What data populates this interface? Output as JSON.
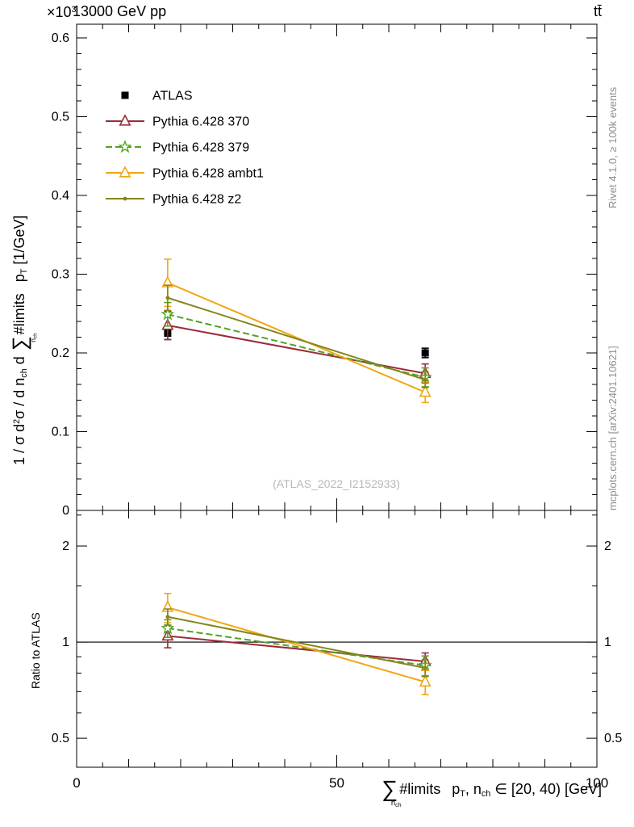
{
  "header": {
    "scale_base": "×10",
    "scale_exp": "3",
    "title_left": "13000 GeV pp",
    "title_right": "tt̄"
  },
  "side_notes": {
    "top": "Rivet 4.1.0, ≥ 100k events",
    "bottom": "mcplots.cern.ch [arXiv:2401.10621]"
  },
  "watermark": "(ATLAS_2022_I2152933)",
  "axes": {
    "ratio_label": "Ratio to ATLAS",
    "y_title": {
      "p1": "1 / σ d",
      "p1_sup": "2",
      "p2": "σ / d n",
      "p2_sub": "ch",
      "p3": " d ",
      "sum": "∑",
      "sum_sub": "n",
      "sum_sub2": "ch",
      "p4": "#limits",
      "p5": "p",
      "p5_sub": "T",
      "p6": " [1/GeV]"
    },
    "x_title": {
      "sum": "∑",
      "sum_sub": "n",
      "sum_sub2": "ch",
      "limits": "#limits",
      "p": "p",
      "p_sub": "T",
      "rest1": ", n",
      "rest1_sub": "ch",
      "rest2": " ∈ [20, 40) [GeV]"
    }
  },
  "chart_data": {
    "type": "line",
    "title": "13000 GeV pp",
    "right_label": "tt̄",
    "x": [
      17.5,
      67
    ],
    "x_axis": {
      "range": [
        0,
        100
      ],
      "major_ticks": [
        0,
        50,
        100
      ],
      "labels": [
        "0",
        "50",
        "100"
      ],
      "minor_step": 5
    },
    "main_y_axis": {
      "range": [
        0,
        0.6174
      ],
      "major_ticks": [
        0,
        0.1,
        0.2,
        0.3,
        0.4,
        0.5,
        0.6
      ],
      "labels": [
        "0",
        "0.1",
        "0.2",
        "0.3",
        "0.4",
        "0.5",
        "0.6"
      ],
      "minor_step": 0.02
    },
    "ratio_y_axis": {
      "scale": "log",
      "range": [
        0.4057,
        2.585
      ],
      "major_ticks": [
        0.5,
        1,
        2
      ],
      "labels": [
        "0.5",
        "1",
        "2"
      ],
      "minor_ticks": [
        0.6,
        0.7,
        0.8,
        0.9,
        1.5,
        2.5
      ],
      "reference_line": 1
    },
    "series": [
      {
        "name": "ATLAS",
        "color": "#000000",
        "line": "none",
        "marker": "square-filled",
        "values": [
          0.225,
          0.2
        ],
        "errors": [
          0.008,
          0.006
        ],
        "ratio": null,
        "ratio_errors": null
      },
      {
        "name": "Pythia 6.428 370",
        "color": "#9c2b3a",
        "line": "solid",
        "marker": "triangle-open",
        "values": [
          0.235,
          0.174
        ],
        "errors": [
          0.018,
          0.012
        ],
        "ratio": [
          1.045,
          0.87
        ],
        "ratio_errors": [
          0.085,
          0.055
        ]
      },
      {
        "name": "Pythia 6.428 379",
        "color": "#53a222",
        "line": "dashed",
        "marker": "star-open",
        "values": [
          0.249,
          0.169
        ],
        "errors": [
          0.015,
          0.012
        ],
        "ratio": [
          1.105,
          0.845
        ],
        "ratio_errors": [
          0.07,
          0.06
        ]
      },
      {
        "name": "Pythia 6.428 ambt1",
        "color": "#f0a513",
        "line": "solid",
        "marker": "triangle-open",
        "values": [
          0.289,
          0.15
        ],
        "errors": [
          0.03,
          0.013
        ],
        "ratio": [
          1.285,
          0.75
        ],
        "ratio_errors": [
          0.135,
          0.065
        ]
      },
      {
        "name": "Pythia 6.428 z2",
        "color": "#84861b",
        "line": "solid",
        "marker": "dot",
        "values": [
          0.27,
          0.166
        ],
        "errors": [
          0.016,
          0.01
        ],
        "ratio": [
          1.2,
          0.83
        ],
        "ratio_errors": [
          0.07,
          0.05
        ]
      }
    ]
  }
}
